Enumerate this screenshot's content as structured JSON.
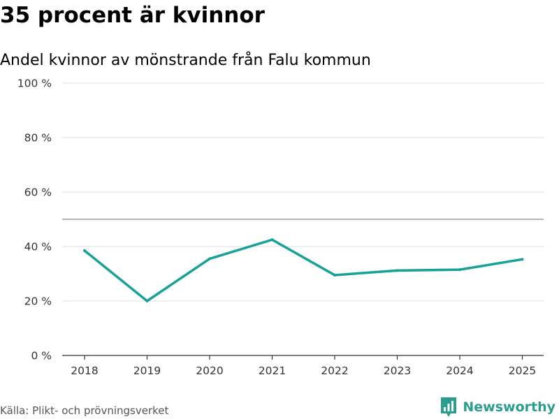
{
  "header": {
    "title": "35 procent är kvinnor",
    "subtitle": "Andel kvinnor av mönstrande från Falu kommun"
  },
  "footer": {
    "source": "Källa: Plikt- och prövningsverket",
    "brand": "Newsworthy",
    "brand_icon": "newsworthy-logo-icon"
  },
  "colors": {
    "line": "#17a198",
    "brand": "#2a9d8f",
    "grid": "#dddddd",
    "reference": "#888888"
  },
  "chart_data": {
    "type": "line",
    "title": "35 procent är kvinnor",
    "subtitle": "Andel kvinnor av mönstrande från Falu kommun",
    "xlabel": "",
    "ylabel": "",
    "categories": [
      "2018",
      "2019",
      "2020",
      "2021",
      "2022",
      "2023",
      "2024",
      "2025"
    ],
    "series": [
      {
        "name": "Andel kvinnor",
        "values": [
          38.5,
          20,
          35.5,
          42.5,
          29.5,
          31.2,
          31.5,
          35.3
        ]
      }
    ],
    "ylim": [
      0,
      100
    ],
    "yticks": [
      0,
      20,
      40,
      60,
      80,
      100
    ],
    "ytick_labels": [
      "0 %",
      "20 %",
      "40 %",
      "60 %",
      "80 %",
      "100 %"
    ],
    "reference_line": 50,
    "grid": true
  }
}
